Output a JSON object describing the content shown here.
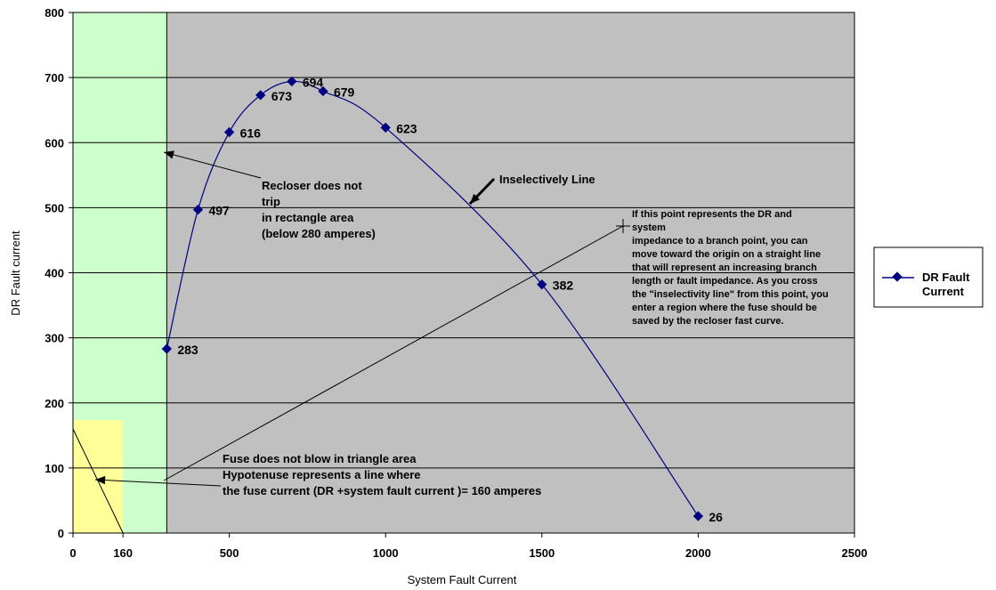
{
  "chart_data": {
    "type": "line",
    "title": "",
    "xlabel": "System Fault Current",
    "ylabel": "DR Fault  current",
    "xlim": [
      0,
      2500
    ],
    "ylim": [
      0,
      800
    ],
    "x_ticks": [
      0,
      160,
      500,
      1000,
      1500,
      2000,
      2500
    ],
    "y_ticks": [
      0,
      100,
      200,
      300,
      400,
      500,
      600,
      700,
      800
    ],
    "grid": "horizontal",
    "legend_position": "right",
    "colors": {
      "plot_bg": "#c0c0c0",
      "series": "#000080",
      "rectangle_region": "#ccffcc",
      "triangle_region": "#ffff99"
    },
    "series": [
      {
        "name": "DR Fault Current",
        "x": [
          300,
          400,
          500,
          600,
          700,
          800,
          1000,
          1500,
          2000
        ],
        "y": [
          283,
          497,
          616,
          673,
          694,
          679,
          623,
          382,
          26
        ]
      }
    ],
    "data_labels": [
      "283",
      "497",
      "616",
      "673",
      "694",
      "679",
      "623",
      "382",
      "26"
    ],
    "regions": {
      "rectangle": {
        "x": [
          0,
          300
        ],
        "y": [
          0,
          800
        ]
      },
      "triangle": {
        "x": [
          0,
          160
        ],
        "y": [
          0,
          160
        ]
      }
    },
    "annotations": [
      {
        "id": "recloser",
        "lines": [
          "Recloser does not",
          "trip",
          "in rectangle area",
          "(below 280 amperes)"
        ]
      },
      {
        "id": "inselectively",
        "lines": [
          "Inselectively Line"
        ]
      },
      {
        "id": "branch-point",
        "lines": [
          "If  this point represents the DR and",
          "system",
          "impedance to a branch point, you can",
          "move toward the origin on a straight line",
          "that will represent an increasing branch",
          "length or fault impedance.  As you cross",
          "the \"inselectivity line\" from this point, you",
          "enter a region where the fuse should be",
          "saved by the recloser fast curve."
        ]
      },
      {
        "id": "fuse",
        "lines": [
          "Fuse does not blow in triangle area",
          "Hypotenuse represents a line where",
          "the fuse current (DR +system fault current )= 160 amperes"
        ]
      }
    ]
  }
}
